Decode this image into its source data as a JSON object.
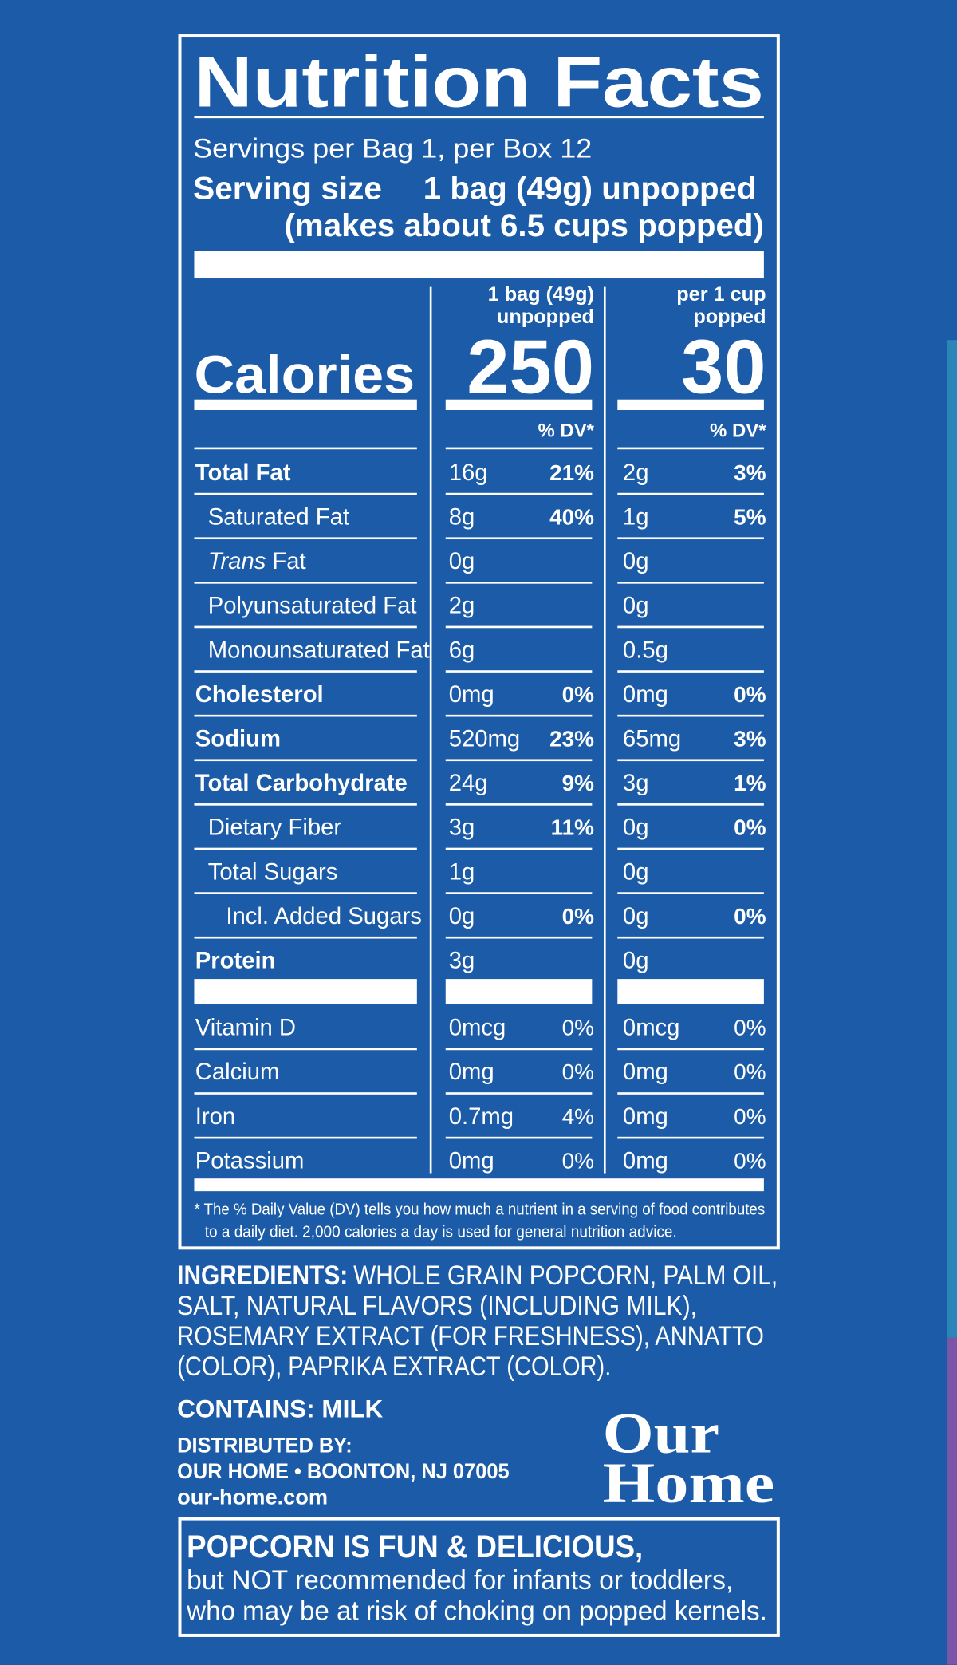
{
  "title": "Nutrition Facts",
  "servings": "Servings per Bag 1,  per Box 12",
  "serving_size": {
    "label": "Serving size",
    "value": "1 bag (49g) unpopped",
    "note": "(makes about 6.5 cups popped)"
  },
  "calories_label": "Calories",
  "columns": [
    {
      "header": "1 bag (49g)",
      "subheader": "unpopped",
      "calories": "250",
      "dv_header": "% DV*"
    },
    {
      "header": "per 1 cup",
      "subheader": "popped",
      "calories": "30",
      "dv_header": "% DV*"
    }
  ],
  "nutrients": [
    {
      "name": "Total Fat",
      "bold": true,
      "indent": 0,
      "amounts": [
        "16g",
        "2g"
      ],
      "dv": [
        "21%",
        "3%"
      ]
    },
    {
      "name": "Saturated Fat",
      "bold": false,
      "indent": 1,
      "amounts": [
        "8g",
        "1g"
      ],
      "dv": [
        "40%",
        "5%"
      ]
    },
    {
      "italic_prefix": "Trans",
      "name": "Fat",
      "bold": false,
      "indent": 1,
      "amounts": [
        "0g",
        "0g"
      ],
      "dv": [
        null,
        null
      ]
    },
    {
      "name": "Polyunsaturated Fat",
      "bold": false,
      "indent": 1,
      "amounts": [
        "2g",
        "0g"
      ],
      "dv": [
        null,
        null
      ]
    },
    {
      "name": "Monounsaturated Fat",
      "bold": false,
      "indent": 1,
      "amounts": [
        "6g",
        "0.5g"
      ],
      "dv": [
        null,
        null
      ]
    },
    {
      "name": "Cholesterol",
      "bold": true,
      "indent": 0,
      "amounts": [
        "0mg",
        "0mg"
      ],
      "dv": [
        "0%",
        "0%"
      ]
    },
    {
      "name": "Sodium",
      "bold": true,
      "indent": 0,
      "amounts": [
        "520mg",
        "65mg"
      ],
      "dv": [
        "23%",
        "3%"
      ]
    },
    {
      "name": "Total Carbohydrate",
      "bold": true,
      "indent": 0,
      "amounts": [
        "24g",
        "3g"
      ],
      "dv": [
        "9%",
        "1%"
      ]
    },
    {
      "name": "Dietary Fiber",
      "bold": false,
      "indent": 1,
      "amounts": [
        "3g",
        "0g"
      ],
      "dv": [
        "11%",
        "0%"
      ]
    },
    {
      "name": "Total Sugars",
      "bold": false,
      "indent": 1,
      "amounts": [
        "1g",
        "0g"
      ],
      "dv": [
        null,
        null
      ]
    },
    {
      "name": "Incl. Added Sugars",
      "bold": false,
      "indent": 2,
      "amounts": [
        "0g",
        "0g"
      ],
      "dv": [
        "0%",
        "0%"
      ]
    },
    {
      "name": "Protein",
      "bold": true,
      "indent": 0,
      "amounts": [
        "3g",
        "0g"
      ],
      "dv": [
        null,
        null
      ]
    }
  ],
  "vitamins": [
    {
      "name": "Vitamin D",
      "amounts": [
        "0mcg",
        "0mcg"
      ],
      "dv": [
        "0%",
        "0%"
      ]
    },
    {
      "name": "Calcium",
      "amounts": [
        "0mg",
        "0mg"
      ],
      "dv": [
        "0%",
        "0%"
      ]
    },
    {
      "name": "Iron",
      "amounts": [
        "0.7mg",
        "0mg"
      ],
      "dv": [
        "4%",
        "0%"
      ]
    },
    {
      "name": "Potassium",
      "amounts": [
        "0mg",
        "0mg"
      ],
      "dv": [
        "0%",
        "0%"
      ]
    }
  ],
  "footnote": [
    "* The % Daily Value (DV) tells you how much a nutrient in a serving of food contributes",
    "to a daily diet. 2,000 calories a day is used for general nutrition advice."
  ],
  "ingredients": {
    "label": "INGREDIENTS:",
    "lines": [
      "WHOLE GRAIN POPCORN, PALM OIL,",
      "SALT, NATURAL FLAVORS (INCLUDING MILK),",
      "ROSEMARY EXTRACT (FOR FRESHNESS), ANNATTO",
      "(COLOR), PAPRIKA EXTRACT (COLOR)."
    ]
  },
  "contains": "CONTAINS: MILK",
  "distributor": [
    "DISTRIBUTED BY:",
    "OUR HOME • BOONTON, NJ 07005",
    "our-home.com"
  ],
  "logo": [
    "Our",
    "Home"
  ],
  "warning": [
    "POPCORN IS FUN & DELICIOUS,",
    "but NOT recommended for infants or toddlers,",
    "who may be at risk of choking on popped kernels."
  ]
}
